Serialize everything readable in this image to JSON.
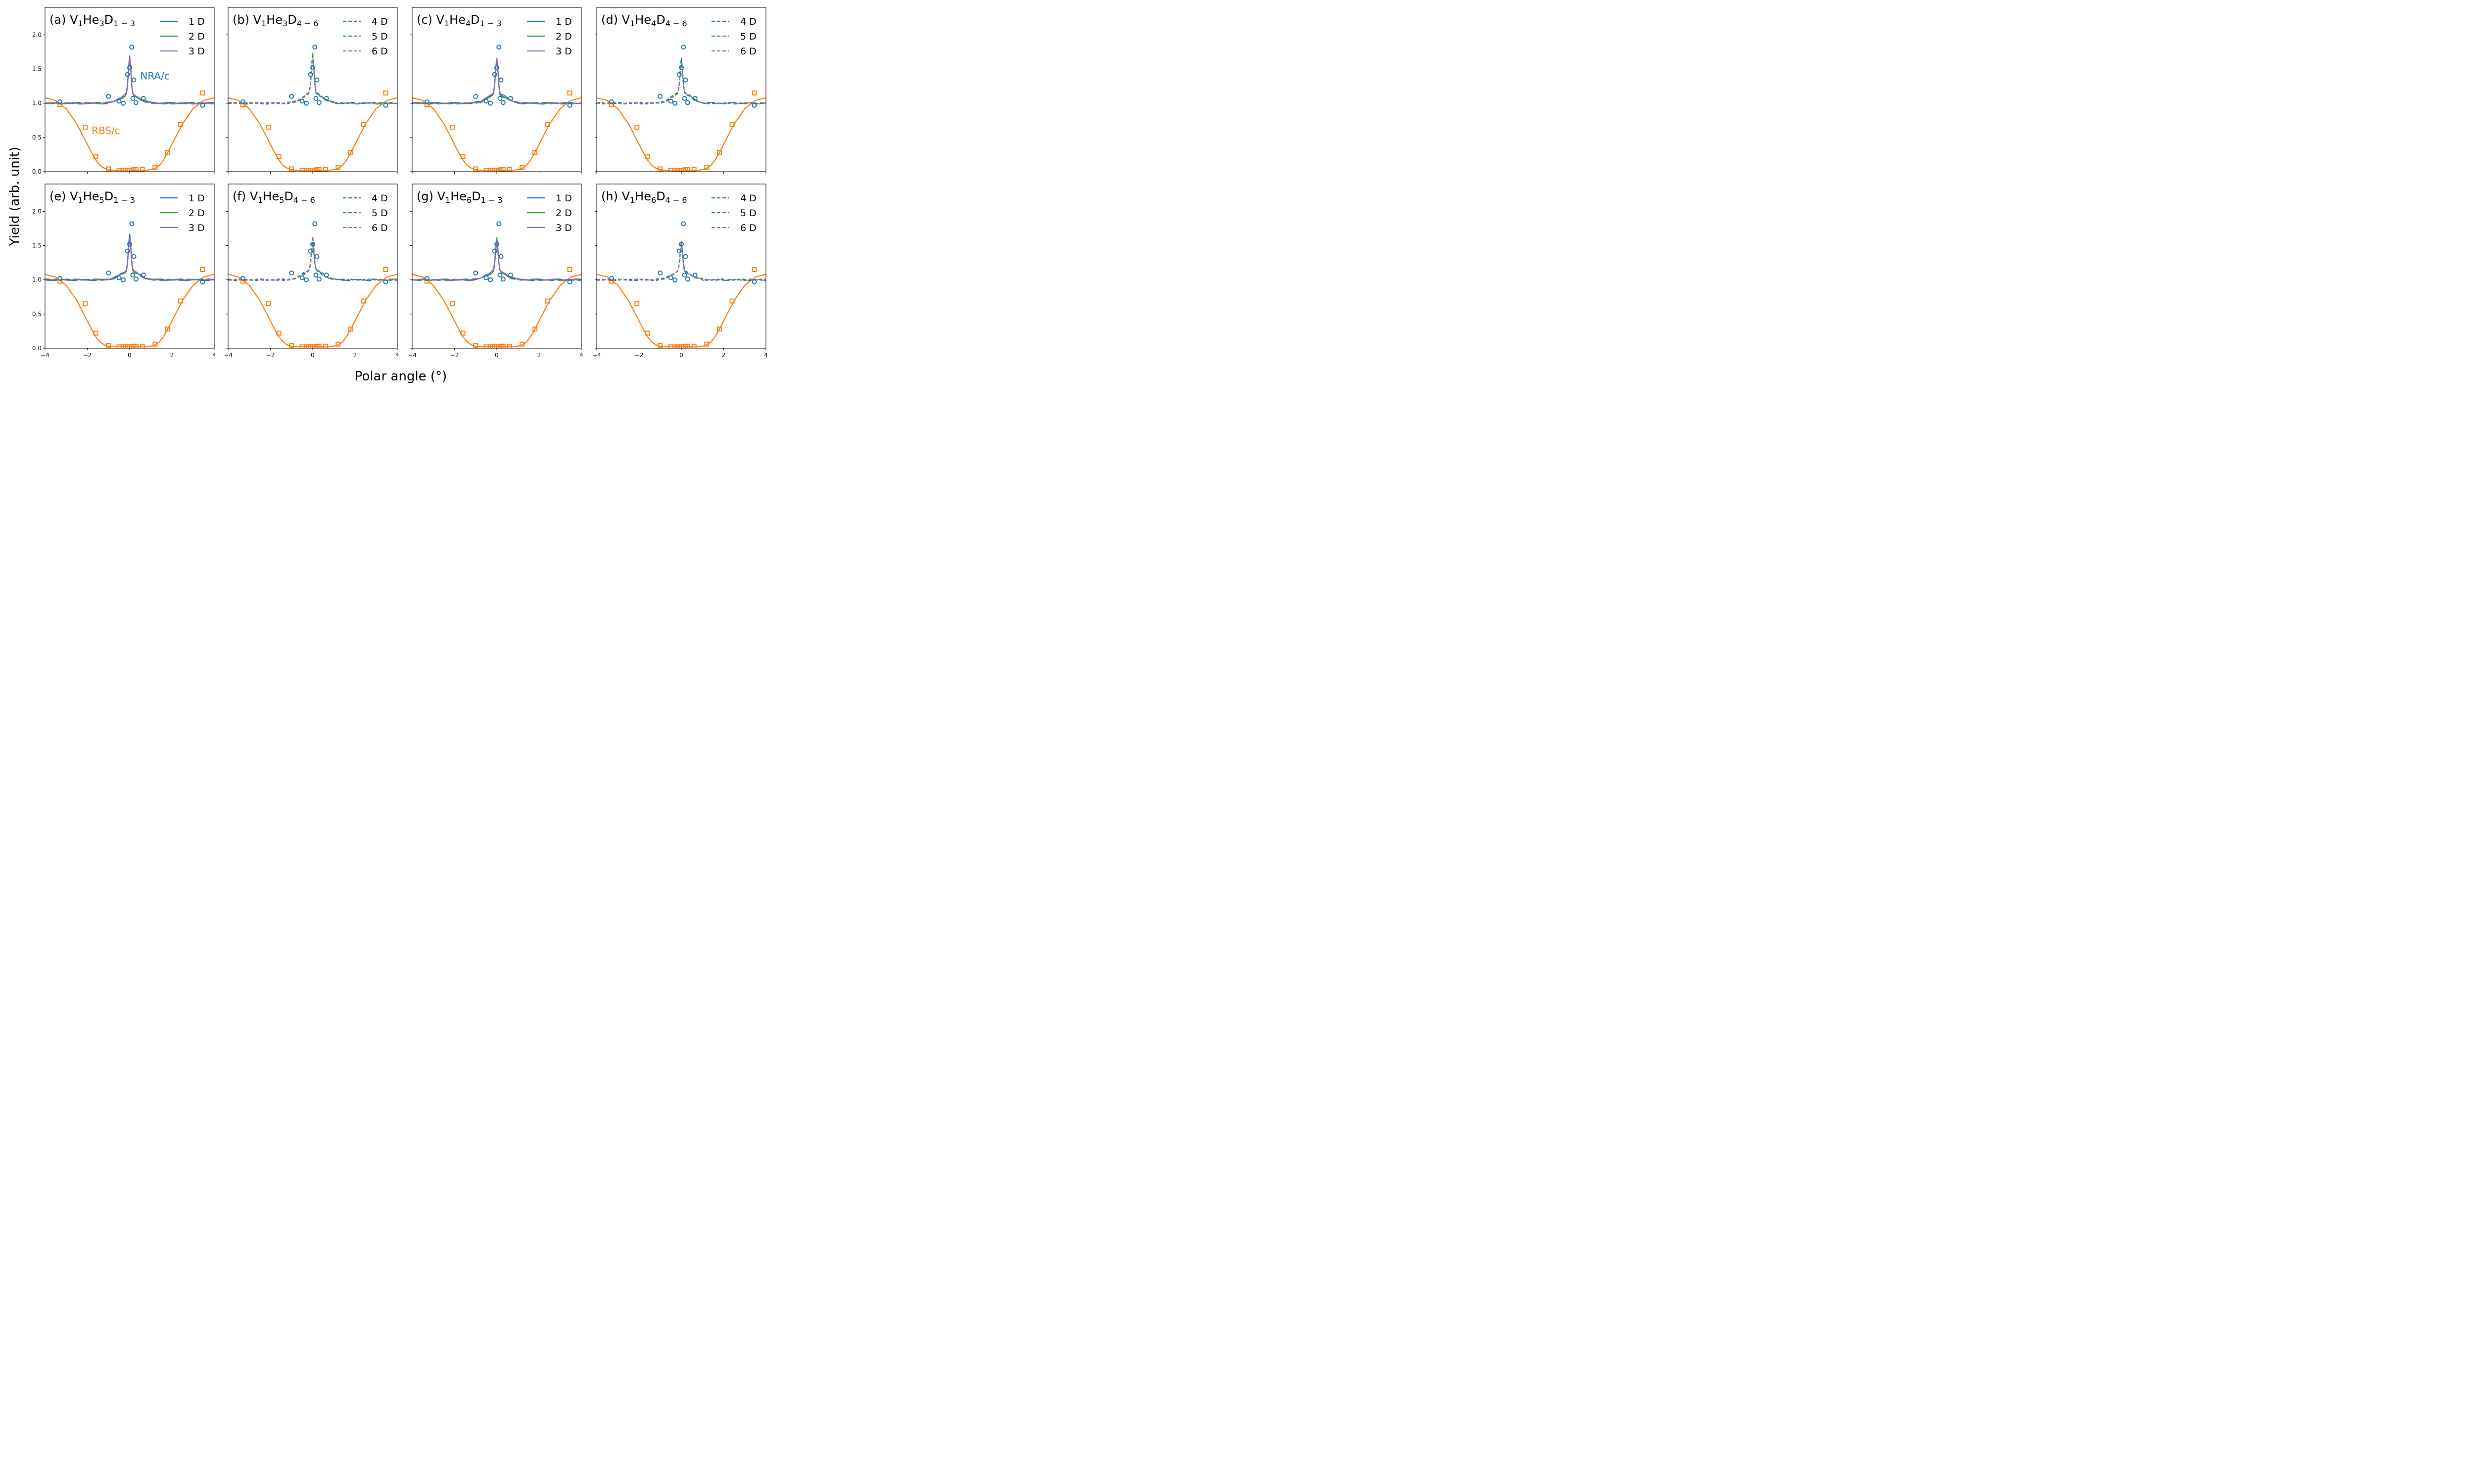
{
  "chart_data": {
    "type": "line",
    "figure": {
      "ylabel": "Yield (arb. unit)",
      "xlabel": "Polar angle (°)",
      "xlim": [
        -4,
        4
      ],
      "ylim": [
        0,
        2.4
      ],
      "xticks": [
        -4,
        -2,
        0,
        2,
        4
      ],
      "yticks": [
        0.0,
        0.5,
        1.0,
        1.5,
        2.0
      ],
      "xtick_labels": [
        "−4",
        "−2",
        "0",
        "2",
        "4"
      ],
      "ytick_labels": [
        "0.0",
        "0.5",
        "1.0",
        "1.5",
        "2.0"
      ],
      "legend_placement": "top-right",
      "annotations": [
        {
          "text": "NRA/c",
          "panel": 0,
          "x": 0.5,
          "y": 1.35,
          "color": "#1f77b4"
        },
        {
          "text": "RBS/c",
          "panel": 0,
          "x": -1.8,
          "y": 0.55,
          "color": "#ff7f0e"
        }
      ]
    },
    "colors": {
      "series1": "#1f77b4",
      "series2": "#2ca02c",
      "series3": "#9467bd",
      "rbs": "#ff7f0e",
      "nra_exp": "#1f77b4"
    },
    "experiment": {
      "nra_c": {
        "x": [
          -3.3,
          -1.0,
          -0.5,
          -0.3,
          -0.1,
          0.0,
          0.1,
          0.15,
          0.2,
          0.3,
          0.65,
          3.45
        ],
        "y": [
          1.02,
          1.1,
          1.03,
          1.0,
          1.42,
          1.52,
          1.82,
          1.07,
          1.34,
          1.01,
          1.07,
          0.97
        ]
      },
      "rbs_c_points": {
        "x": [
          -3.3,
          -2.1,
          -1.6,
          -1.0,
          -0.5,
          -0.3,
          -0.2,
          -0.1,
          0.0,
          0.1,
          0.2,
          0.3,
          0.6,
          1.2,
          1.8,
          2.4,
          3.45
        ],
        "y": [
          0.98,
          0.65,
          0.22,
          0.04,
          0.02,
          0.02,
          0.02,
          0.02,
          0.02,
          0.02,
          0.03,
          0.03,
          0.03,
          0.06,
          0.28,
          0.69,
          1.15
        ]
      },
      "rbs_c_curve": {
        "x": [
          -4.0,
          -3.5,
          -3.0,
          -2.5,
          -2.2,
          -2.0,
          -1.8,
          -1.6,
          -1.4,
          -1.2,
          -1.0,
          -0.8,
          -0.6,
          -0.4,
          -0.2,
          0.0,
          0.2,
          0.4,
          0.6,
          0.8,
          1.0,
          1.2,
          1.4,
          1.6,
          1.8,
          2.0,
          2.2,
          2.5,
          3.0,
          3.5,
          4.0
        ],
        "y": [
          1.08,
          1.04,
          0.92,
          0.7,
          0.52,
          0.4,
          0.28,
          0.17,
          0.09,
          0.05,
          0.03,
          0.02,
          0.02,
          0.02,
          0.02,
          0.02,
          0.02,
          0.02,
          0.02,
          0.02,
          0.03,
          0.05,
          0.09,
          0.17,
          0.28,
          0.4,
          0.52,
          0.7,
          0.92,
          1.04,
          1.08
        ]
      }
    },
    "panels": [
      {
        "label": "(a) V",
        "sub1": "1",
        "mid1": "He",
        "sub2": "3",
        "mid2": "D",
        "sub3": "1 − 3",
        "style": "solid",
        "series": [
          {
            "name": "1 D",
            "color": "#1f77b4",
            "peak": 1.78,
            "shoulder": 1.13
          },
          {
            "name": "2 D",
            "color": "#2ca02c",
            "peak": 1.73,
            "shoulder": 1.12
          },
          {
            "name": "3 D",
            "color": "#9467bd",
            "peak": 1.75,
            "shoulder": 1.14
          }
        ]
      },
      {
        "label": "(b) V",
        "sub1": "1",
        "mid1": "He",
        "sub2": "3",
        "mid2": "D",
        "sub3": "4 − 6",
        "style": "dashed",
        "series": [
          {
            "name": "4 D",
            "color": "#1f77b4",
            "peak": 1.7,
            "shoulder": 1.17
          },
          {
            "name": "5 D",
            "color": "#2ca02c",
            "peak": 1.8,
            "shoulder": 1.15
          },
          {
            "name": "6 D",
            "color": "#9467bd",
            "peak": 1.68,
            "shoulder": 1.16
          }
        ]
      },
      {
        "label": "(c) V",
        "sub1": "1",
        "mid1": "He",
        "sub2": "4",
        "mid2": "D",
        "sub3": "1 − 3",
        "style": "solid",
        "series": [
          {
            "name": "1 D",
            "color": "#1f77b4",
            "peak": 1.7,
            "shoulder": 1.14
          },
          {
            "name": "2 D",
            "color": "#2ca02c",
            "peak": 1.75,
            "shoulder": 1.12
          },
          {
            "name": "3 D",
            "color": "#9467bd",
            "peak": 1.72,
            "shoulder": 1.15
          }
        ]
      },
      {
        "label": "(d) V",
        "sub1": "1",
        "mid1": "He",
        "sub2": "4",
        "mid2": "D",
        "sub3": "4 − 6",
        "style": "dashed",
        "series": [
          {
            "name": "4 D",
            "color": "#1f77b4",
            "peak": 1.69,
            "shoulder": 1.16
          },
          {
            "name": "5 D",
            "color": "#2ca02c",
            "peak": 1.62,
            "shoulder": 1.17
          },
          {
            "name": "6 D",
            "color": "#9467bd",
            "peak": 1.6,
            "shoulder": 1.15
          }
        ]
      },
      {
        "label": "(e) V",
        "sub1": "1",
        "mid1": "He",
        "sub2": "5",
        "mid2": "D",
        "sub3": "1 − 3",
        "style": "solid",
        "series": [
          {
            "name": "1 D",
            "color": "#1f77b4",
            "peak": 1.76,
            "shoulder": 1.13
          },
          {
            "name": "2 D",
            "color": "#2ca02c",
            "peak": 1.7,
            "shoulder": 1.12
          },
          {
            "name": "3 D",
            "color": "#9467bd",
            "peak": 1.66,
            "shoulder": 1.14
          }
        ]
      },
      {
        "label": "(f) V",
        "sub1": "1",
        "mid1": "He",
        "sub2": "5",
        "mid2": "D",
        "sub3": "4 − 6",
        "style": "dashed",
        "series": [
          {
            "name": "4 D",
            "color": "#1f77b4",
            "peak": 1.55,
            "shoulder": 1.16
          },
          {
            "name": "5 D",
            "color": "#2ca02c",
            "peak": 1.52,
            "shoulder": 1.15
          },
          {
            "name": "6 D",
            "color": "#9467bd",
            "peak": 1.68,
            "shoulder": 1.14
          }
        ]
      },
      {
        "label": "(g) V",
        "sub1": "1",
        "mid1": "He",
        "sub2": "6",
        "mid2": "D",
        "sub3": "1 − 3",
        "style": "solid",
        "series": [
          {
            "name": "1 D",
            "color": "#1f77b4",
            "peak": 1.6,
            "shoulder": 1.13
          },
          {
            "name": "2 D",
            "color": "#2ca02c",
            "peak": 1.68,
            "shoulder": 1.12
          },
          {
            "name": "3 D",
            "color": "#9467bd",
            "peak": 1.62,
            "shoulder": 1.14
          }
        ]
      },
      {
        "label": "(h) V",
        "sub1": "1",
        "mid1": "He",
        "sub2": "6",
        "mid2": "D",
        "sub3": "4 − 6",
        "style": "dashed",
        "series": [
          {
            "name": "4 D",
            "color": "#1f77b4",
            "peak": 1.55,
            "shoulder": 1.14
          },
          {
            "name": "5 D",
            "color": "#2ca02c",
            "peak": 1.5,
            "shoulder": 1.13
          },
          {
            "name": "6 D",
            "color": "#9467bd",
            "peak": 1.62,
            "shoulder": 1.12
          }
        ]
      }
    ]
  }
}
